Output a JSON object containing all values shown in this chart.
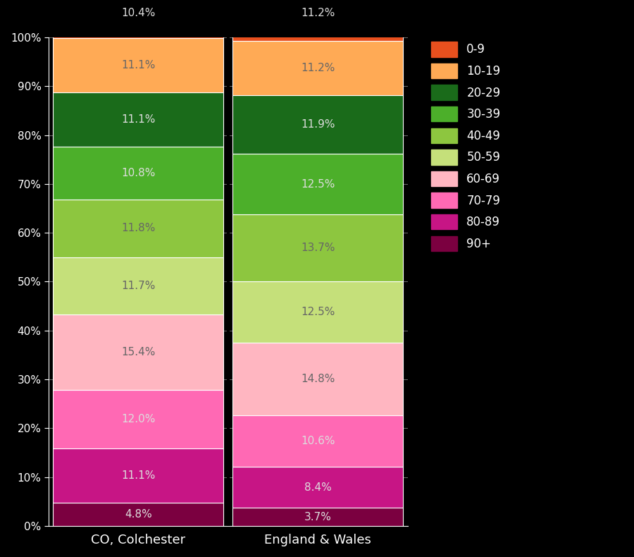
{
  "categories": [
    "CO, Colchester",
    "England & Wales"
  ],
  "age_order_bottom_to_top": [
    "90+",
    "80-89",
    "70-79",
    "60-69",
    "50-59",
    "40-49",
    "30-39",
    "20-29",
    "10-19",
    "0-9"
  ],
  "colors": {
    "0-9": "#E8501E",
    "10-19": "#FFAA55",
    "20-29": "#1A6B1A",
    "30-39": "#4CAF2A",
    "40-49": "#8DC63F",
    "50-59": "#C5E07A",
    "60-69": "#FFB6C1",
    "70-79": "#FF69B4",
    "80-89": "#C71585",
    "90+": "#7B0040"
  },
  "values": {
    "CO, Colchester": {
      "90+": 4.8,
      "80-89": 11.1,
      "70-79": 12.0,
      "60-69": 15.4,
      "50-59": 11.7,
      "40-49": 11.8,
      "30-39": 10.8,
      "20-29": 11.1,
      "10-19": 11.1,
      "0-9": 10.4
    },
    "England & Wales": {
      "90+": 3.7,
      "80-89": 8.4,
      "70-79": 10.6,
      "60-69": 14.8,
      "50-59": 12.5,
      "40-49": 13.7,
      "30-39": 12.5,
      "20-29": 11.9,
      "10-19": 11.2,
      "0-9": 11.2
    }
  },
  "label_values": {
    "CO, Colchester": {
      "90+": "4.8%",
      "80-89": "11.1%",
      "70-79": "12.0%",
      "60-69": "15.4%",
      "50-59": "11.7%",
      "40-49": "11.8%",
      "30-39": "10.8%",
      "20-29": "11.1%",
      "10-19": "11.1%",
      "0-9": "10.4%"
    },
    "England & Wales": {
      "90+": "3.7%",
      "80-89": "8.4%",
      "70-79": "10.6%",
      "60-69": "14.8%",
      "50-59": "12.5%",
      "40-49": "13.7%",
      "30-39": "12.5%",
      "20-29": "11.9%",
      "10-19": "11.2%",
      "0-9": "11.2%"
    }
  },
  "background_color": "#000000",
  "figsize": [
    9.0,
    7.9
  ],
  "dpi": 100
}
